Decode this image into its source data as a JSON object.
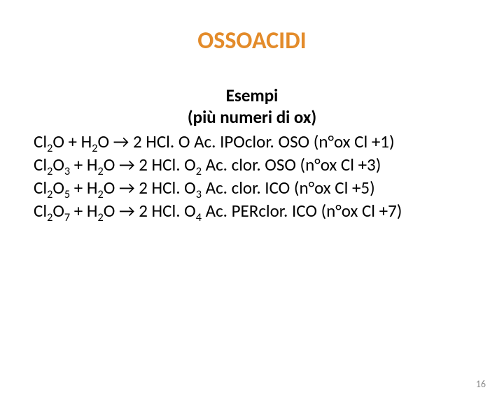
{
  "title": {
    "text": "OSSOACIDI",
    "color": "#e38b2a",
    "fontsize": 34,
    "fontweight": 700
  },
  "subtitle": {
    "line1": "Esempi",
    "line2": "(più numeri di ox)",
    "color": "#000000",
    "fontsize": 25,
    "fontweight": 700
  },
  "body": {
    "color": "#000000",
    "fontsize": 25,
    "fontweight": 400,
    "lines": [
      {
        "html": "Cl<sub>2</sub>O  + H<sub>2</sub>O → 2 HCl. O   Ac. IPOclor. OSO          (n°ox Cl +1)"
      },
      {
        "html": "Cl<sub>2</sub>O<sub>3</sub> + H<sub>2</sub>O → 2 HCl. O<sub>2</sub>  Ac. clor. OSO     (n°ox Cl +3)"
      },
      {
        "html": "Cl<sub>2</sub>O<sub>5</sub> + H<sub>2</sub>O → 2 HCl. O<sub>3</sub>  Ac. clor. ICO       (n°ox Cl +5)"
      },
      {
        "html": "Cl<sub>2</sub>O<sub>7</sub> + H<sub>2</sub>O → 2 HCl. O<sub>4</sub> Ac. PERclor. ICO (n°ox Cl +7)"
      }
    ]
  },
  "pagenum": {
    "text": "16",
    "color": "#8c8c8c",
    "fontsize": 14
  }
}
